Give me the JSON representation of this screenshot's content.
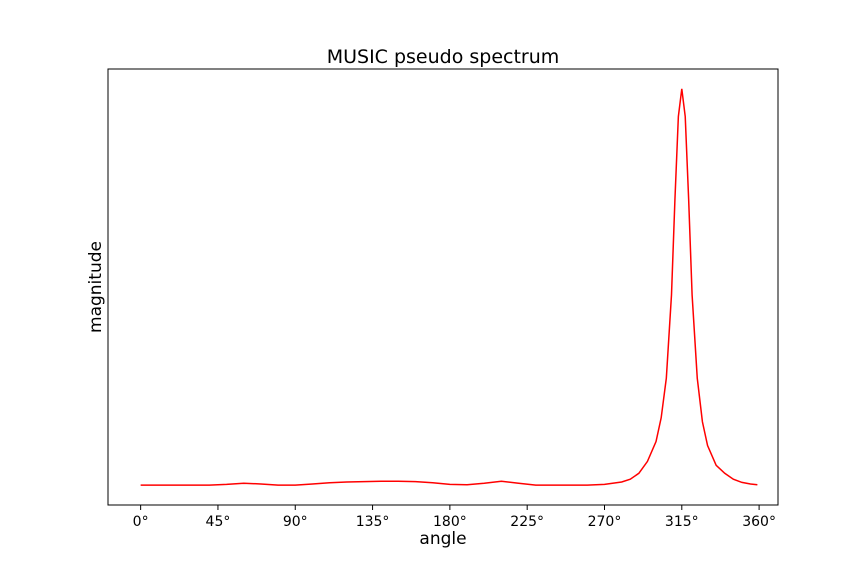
{
  "chart_data": {
    "type": "line",
    "title": "MUSIC pseudo spectrum",
    "xlabel": "angle",
    "ylabel": "magnitude",
    "xlim": [
      -19,
      371
    ],
    "ylim": [
      -0.05,
      1.05
    ],
    "y_ticks_shown": false,
    "grid": false,
    "x_ticks": [
      0,
      45,
      90,
      135,
      180,
      225,
      270,
      315,
      360
    ],
    "x_tick_labels": [
      "0°",
      "45°",
      "90°",
      "135°",
      "180°",
      "225°",
      "270°",
      "315°",
      "360°"
    ],
    "line_color": "#ff0000",
    "series": [
      {
        "x": [
          0,
          10,
          20,
          30,
          40,
          50,
          60,
          70,
          80,
          90,
          100,
          110,
          120,
          130,
          140,
          150,
          160,
          170,
          180,
          190,
          200,
          210,
          220,
          230,
          240,
          250,
          260,
          270,
          280,
          285,
          290,
          295,
          300,
          303,
          306,
          309,
          311,
          313,
          315,
          317,
          319,
          321,
          324,
          327,
          330,
          335,
          340,
          345,
          350,
          355,
          359
        ],
        "y": [
          0.0,
          0.0,
          0.0,
          0.0,
          0.0,
          0.002,
          0.005,
          0.003,
          0.0,
          0.0,
          0.003,
          0.006,
          0.008,
          0.009,
          0.01,
          0.01,
          0.009,
          0.006,
          0.002,
          0.001,
          0.005,
          0.01,
          0.005,
          0.0,
          0.0,
          0.0,
          0.0,
          0.002,
          0.008,
          0.015,
          0.03,
          0.06,
          0.11,
          0.17,
          0.27,
          0.48,
          0.72,
          0.93,
          1.0,
          0.93,
          0.72,
          0.48,
          0.27,
          0.16,
          0.1,
          0.05,
          0.03,
          0.015,
          0.007,
          0.003,
          0.001
        ]
      }
    ]
  }
}
